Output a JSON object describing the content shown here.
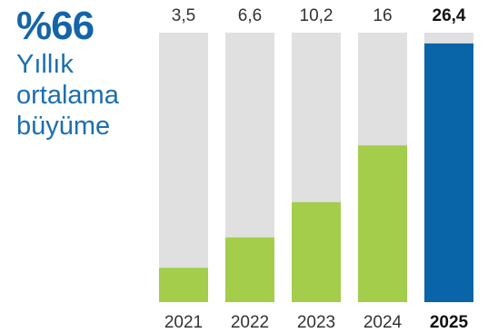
{
  "headline": {
    "value": "%66",
    "line1": "Yıllık",
    "line2": "ortalama",
    "line3": "büyüme"
  },
  "colors": {
    "track": "#dfe0df",
    "green": "#a3cd4b",
    "blue": "#0a64a8",
    "headline": "#1464a8"
  },
  "chart_data": {
    "type": "bar",
    "categories": [
      "2021",
      "2022",
      "2023",
      "2024",
      "2025"
    ],
    "values": [
      3.5,
      6.6,
      10.2,
      16,
      26.4
    ],
    "value_labels": [
      "3,5",
      "6,6",
      "10,2",
      "16",
      "26,4"
    ],
    "highlight_index": 4,
    "ylim": [
      0,
      27.5
    ],
    "grid": false,
    "title": "",
    "xlabel": "",
    "ylabel": ""
  }
}
